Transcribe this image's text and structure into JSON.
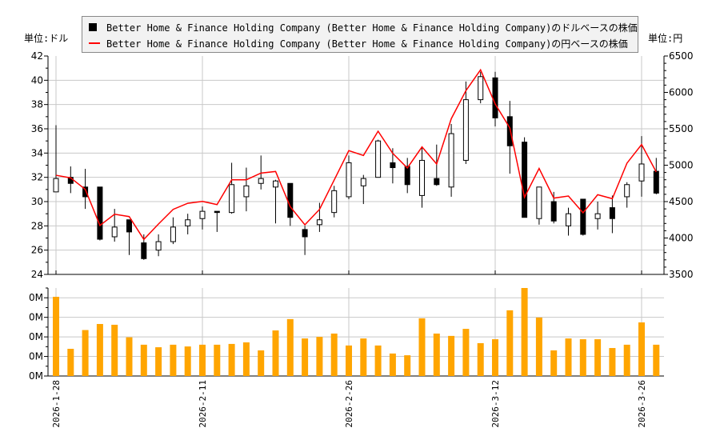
{
  "units": {
    "left": "単位:ドル",
    "right": "単位:円"
  },
  "legend": {
    "usd": "Better Home & Finance Holding Company (Better Home & Finance Holding Company)のドルベースの株価",
    "jpy": "Better Home & Finance Holding Company (Better Home & Finance Holding Company)の円ベースの株価"
  },
  "colors": {
    "up": "#ffffff",
    "down": "#000000",
    "line": "#ff0000",
    "volume": "#ffa500",
    "grid": "#c8c8c8"
  },
  "chart_data": [
    {
      "type": "candlestick",
      "grid": true,
      "legend_position": "top",
      "ylim_left": [
        24,
        42
      ],
      "yticks_left": [
        24,
        26,
        28,
        30,
        32,
        34,
        36,
        38,
        40,
        42
      ],
      "ylim_right": [
        3500,
        6500
      ],
      "yticks_right": [
        3500,
        4000,
        4500,
        5000,
        5500,
        6000,
        6500
      ],
      "xtick_labels": [
        "2026-1-28",
        "2026-2-11",
        "2026-2-26",
        "2026-3-12",
        "2026-3-26"
      ],
      "dates": [
        "2026-1-28",
        "2026-1-29",
        "2026-1-30",
        "2026-2-2",
        "2026-2-3",
        "2026-2-4",
        "2026-2-5",
        "2026-2-6",
        "2026-2-9",
        "2026-2-10",
        "2026-2-11",
        "2026-2-12",
        "2026-2-13",
        "2026-2-17",
        "2026-2-18",
        "2026-2-19",
        "2026-2-20",
        "2026-2-23",
        "2026-2-24",
        "2026-2-25",
        "2026-2-26",
        "2026-2-27",
        "2026-3-2",
        "2026-3-3",
        "2026-3-4",
        "2026-3-5",
        "2026-3-6",
        "2026-3-9",
        "2026-3-10",
        "2026-3-11",
        "2026-3-12",
        "2026-3-13",
        "2026-3-16",
        "2026-3-17",
        "2026-3-18",
        "2026-3-19",
        "2026-3-20",
        "2026-3-23",
        "2026-3-24",
        "2026-3-25",
        "2026-3-26",
        "2026-3-27"
      ],
      "ohlc_usd": [
        [
          30.8,
          36.3,
          30.8,
          31.9
        ],
        [
          32.0,
          32.9,
          30.7,
          31.5
        ],
        [
          31.2,
          32.7,
          29.4,
          30.4
        ],
        [
          31.2,
          31.2,
          26.8,
          26.9
        ],
        [
          27.1,
          29.4,
          26.7,
          27.9
        ],
        [
          28.5,
          28.5,
          25.6,
          27.5
        ],
        [
          26.6,
          27.3,
          25.2,
          25.3
        ],
        [
          26.0,
          27.3,
          25.5,
          26.7
        ],
        [
          26.7,
          28.7,
          26.5,
          27.9
        ],
        [
          28.0,
          29.0,
          27.3,
          28.5
        ],
        [
          28.6,
          29.6,
          27.7,
          29.2
        ],
        [
          29.2,
          29.2,
          27.5,
          29.1
        ],
        [
          29.1,
          33.2,
          29.0,
          31.4
        ],
        [
          30.4,
          32.8,
          29.2,
          31.3
        ],
        [
          31.5,
          33.8,
          31.0,
          31.9
        ],
        [
          31.2,
          31.8,
          28.2,
          31.7
        ],
        [
          31.5,
          31.5,
          28.0,
          28.7
        ],
        [
          27.7,
          28.0,
          25.6,
          27.1
        ],
        [
          28.1,
          29.9,
          27.5,
          28.5
        ],
        [
          29.1,
          31.3,
          28.7,
          30.9
        ],
        [
          30.4,
          33.8,
          30.2,
          33.2
        ],
        [
          31.3,
          32.2,
          29.8,
          31.9
        ],
        [
          32.0,
          35.1,
          32.0,
          35.0
        ],
        [
          33.2,
          34.4,
          31.5,
          32.8
        ],
        [
          32.9,
          33.6,
          30.7,
          31.4
        ],
        [
          30.5,
          34.5,
          29.5,
          33.4
        ],
        [
          31.9,
          34.7,
          31.3,
          31.4
        ],
        [
          31.2,
          36.4,
          30.4,
          35.6
        ],
        [
          33.4,
          39.9,
          33.1,
          38.4
        ],
        [
          38.4,
          40.7,
          38.1,
          40.3
        ],
        [
          40.2,
          40.7,
          36.2,
          36.9
        ],
        [
          37.0,
          38.3,
          32.3,
          34.6
        ],
        [
          34.9,
          35.3,
          28.7,
          28.7
        ],
        [
          28.6,
          31.2,
          28.1,
          31.2
        ],
        [
          30.0,
          30.8,
          28.2,
          28.4
        ],
        [
          28.0,
          29.5,
          27.2,
          29.0
        ],
        [
          30.2,
          30.2,
          27.2,
          27.3
        ],
        [
          28.6,
          30.0,
          27.7,
          29.0
        ],
        [
          29.5,
          30.5,
          27.4,
          28.6
        ],
        [
          30.4,
          31.6,
          29.5,
          31.4
        ],
        [
          31.7,
          35.4,
          30.4,
          33.1
        ],
        [
          32.5,
          33.6,
          30.6,
          30.7
        ]
      ],
      "close_jpy": [
        4862,
        4826,
        4668,
        4173,
        4327,
        4294,
        3980,
        4192,
        4393,
        4477,
        4503,
        4459,
        4800,
        4800,
        4892,
        4914,
        4430,
        4181,
        4393,
        4796,
        5200,
        5134,
        5467,
        5163,
        4962,
        5251,
        5017,
        5639,
        6024,
        6310,
        5841,
        5511,
        4559,
        4955,
        4548,
        4577,
        4346,
        4595,
        4540,
        5028,
        5284,
        4907
      ]
    },
    {
      "type": "bar",
      "ylim": [
        0,
        450000
      ],
      "yticks": [
        0,
        100000,
        200000,
        300000,
        400000
      ],
      "ytick_labels": [
        "0M",
        "0M",
        "0M",
        "0M",
        "0M"
      ],
      "volume": [
        405000,
        139000,
        235000,
        266000,
        262000,
        198000,
        160000,
        147000,
        160000,
        151000,
        160000,
        160000,
        164000,
        172000,
        131000,
        233000,
        291000,
        192000,
        200000,
        217000,
        156000,
        192000,
        156000,
        115000,
        106000,
        295000,
        217000,
        205000,
        241000,
        168000,
        188000,
        336000,
        450000,
        299000,
        131000,
        192000,
        188000,
        188000,
        143000,
        160000,
        274000,
        160000
      ]
    }
  ]
}
